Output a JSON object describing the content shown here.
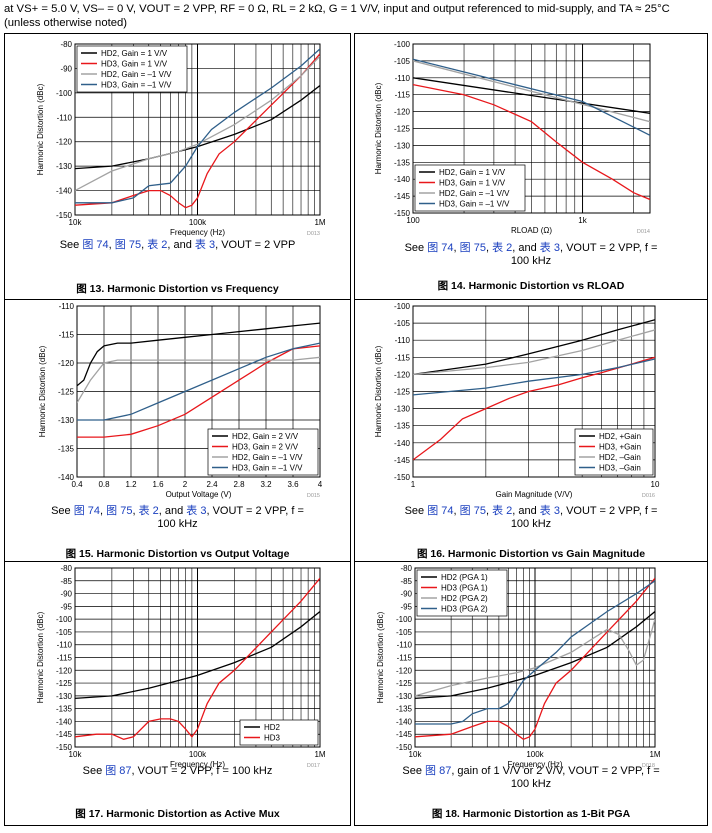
{
  "header": {
    "text": "at VS+ = 5.0 V, VS– = 0 V, VOUT = 2 VPP, RF = 0 Ω, RL = 2 kΩ, G = 1 V/V, input and output referenced to mid-supply, and TA ≈ 25°C (unless otherwise noted)"
  },
  "colors": {
    "black": "#000000",
    "red": "#e8171b",
    "gray": "#a3a3a3",
    "blue": "#2f5f8a",
    "link": "#1a3fbf"
  },
  "figures": [
    {
      "caption": {
        "pre": "See ",
        "links": [
          "图 74",
          "图 75",
          "表 2",
          "表 3"
        ],
        "post": ", VOUT = 2 VPP"
      },
      "title": "图 13. Harmonic Distortion vs Frequency",
      "code": "D013"
    },
    {
      "caption": {
        "pre": "See ",
        "links": [
          "图 74",
          "图 75",
          "表 2",
          "表 3"
        ],
        "post": ", VOUT = 2 VPP, f = 100 kHz"
      },
      "title": "图 14. Harmonic Distortion vs RLOAD",
      "code": "D014"
    },
    {
      "caption": {
        "pre": "See ",
        "links": [
          "图 74",
          "图 75",
          "表 2",
          "表 3"
        ],
        "post": ", VOUT = 2 VPP, f = 100 kHz"
      },
      "title": "图 15. Harmonic Distortion vs Output Voltage",
      "code": "D015"
    },
    {
      "caption": {
        "pre": "See ",
        "links": [
          "图 74",
          "图 75",
          "表 2",
          "表 3"
        ],
        "post": ", VOUT = 2 VPP, f = 100 kHz"
      },
      "title": "图 16. Harmonic Distortion vs Gain Magnitude",
      "code": "D016"
    },
    {
      "caption": {
        "pre": "See ",
        "links": [
          "图 87"
        ],
        "post": ", VOUT = 2 VPP, f = 100 kHz"
      },
      "title": "图 17. Harmonic Distortion as Active Mux",
      "code": "D017"
    },
    {
      "caption": {
        "pre": "See ",
        "links": [
          "图 87"
        ],
        "post": ", gain of 1 V/V or 2 V/V, VOUT = 2 VPP, f = 100 kHz"
      },
      "title": "图 18. Harmonic Distortion as 1-Bit PGA",
      "code": "D018"
    }
  ],
  "chart_data": [
    {
      "type": "line",
      "xscale": "log",
      "xlim": [
        10000,
        1000000
      ],
      "ylim": [
        -150,
        -80
      ],
      "xlabel": "Frequency (Hz)",
      "ylabel": "Harmonic Distortion (dBc)",
      "xticks": [
        10000,
        100000,
        1000000
      ],
      "xticklabels": [
        "10k",
        "100k",
        "1M"
      ],
      "yticks": [
        -80,
        -90,
        -100,
        -110,
        -120,
        -130,
        -140,
        -150
      ],
      "legend_position": "top-left",
      "series": [
        {
          "name": "HD2, Gain = 1 V/V",
          "color": "black",
          "x": [
            10000,
            20000,
            40000,
            70000,
            100000,
            200000,
            400000,
            700000,
            1000000
          ],
          "y": [
            -131,
            -130,
            -127,
            -124,
            -122,
            -117,
            -111,
            -103,
            -97
          ]
        },
        {
          "name": "HD3, Gain = 1 V/V",
          "color": "red",
          "x": [
            10000,
            20000,
            30000,
            40000,
            50000,
            60000,
            70000,
            80000,
            90000,
            100000,
            120000,
            150000,
            200000,
            400000,
            700000,
            1000000
          ],
          "y": [
            -146,
            -145,
            -142,
            -140,
            -140,
            -142,
            -145,
            -147,
            -146,
            -143,
            -133,
            -125,
            -120,
            -105,
            -93,
            -84
          ]
        },
        {
          "name": "HD2, Gain = –1 V/V",
          "color": "gray",
          "x": [
            10000,
            20000,
            40000,
            70000,
            100000,
            200000,
            400000,
            700000,
            1000000
          ],
          "y": [
            -140,
            -132,
            -127,
            -124,
            -121,
            -113,
            -103,
            -93,
            -85
          ]
        },
        {
          "name": "HD3, Gain = –1 V/V",
          "color": "blue",
          "x": [
            10000,
            20000,
            30000,
            40000,
            60000,
            80000,
            100000,
            130000,
            200000,
            400000,
            700000,
            1000000
          ],
          "y": [
            -145,
            -145,
            -143,
            -138,
            -137,
            -130,
            -122,
            -115,
            -108,
            -98,
            -89,
            -82
          ]
        }
      ]
    },
    {
      "type": "line",
      "xscale": "log",
      "xlim": [
        100,
        2500
      ],
      "ylim": [
        -150,
        -100
      ],
      "xlabel": "RLOAD (Ω)",
      "ylabel": "Harmonic Distortion (dBc)",
      "xticks": [
        100,
        1000
      ],
      "xticklabels": [
        "100",
        "1k"
      ],
      "yticks": [
        -100,
        -105,
        -110,
        -115,
        -120,
        -125,
        -130,
        -135,
        -140,
        -145,
        -150
      ],
      "legend_position": "bottom-left",
      "series": [
        {
          "name": "HD2, Gain = 1 V/V",
          "color": "black",
          "x": [
            100,
            2500
          ],
          "y": [
            -110,
            -120.5
          ]
        },
        {
          "name": "HD3, Gain = 1 V/V",
          "color": "red",
          "x": [
            100,
            200,
            300,
            500,
            700,
            1000,
            1500,
            2000,
            2500
          ],
          "y": [
            -112,
            -115,
            -118,
            -123,
            -129,
            -135,
            -140,
            -144,
            -146
          ]
        },
        {
          "name": "HD2, Gain = –1 V/V",
          "color": "gray",
          "x": [
            100,
            2500
          ],
          "y": [
            -105,
            -123
          ]
        },
        {
          "name": "HD3, Gain = –1 V/V",
          "color": "blue",
          "x": [
            100,
            1000,
            2500
          ],
          "y": [
            -104.5,
            -117,
            -127
          ]
        }
      ]
    },
    {
      "type": "line",
      "xscale": "linear",
      "xlim": [
        0.4,
        4
      ],
      "ylim": [
        -140,
        -110
      ],
      "xlabel": "Output Voltage (V)",
      "ylabel": "Harmonic Distortion (dBc)",
      "xticks": [
        0.4,
        0.8,
        1.2,
        1.6,
        2,
        2.4,
        2.8,
        3.2,
        3.6,
        4
      ],
      "xticklabels": [
        "0.4",
        "0.8",
        "1.2",
        "1.6",
        "2",
        "2.4",
        "2.8",
        "3.2",
        "3.6",
        "4"
      ],
      "yticks": [
        -110,
        -115,
        -120,
        -125,
        -130,
        -135,
        -140
      ],
      "legend_position": "bottom-right",
      "series": [
        {
          "name": "HD2, Gain = 2 V/V",
          "color": "black",
          "x": [
            0.4,
            0.5,
            0.6,
            0.7,
            0.8,
            1.0,
            1.2,
            1.6,
            2.0,
            2.4,
            2.8,
            3.2,
            3.6,
            4.0
          ],
          "y": [
            -124,
            -123,
            -120,
            -118,
            -117,
            -116.5,
            -116.5,
            -116,
            -115.5,
            -115,
            -114.5,
            -114,
            -113.5,
            -113
          ]
        },
        {
          "name": "HD3, Gain = 2 V/V",
          "color": "red",
          "x": [
            0.4,
            0.8,
            1.2,
            1.6,
            2.0,
            2.4,
            2.8,
            3.2,
            3.6,
            4.0
          ],
          "y": [
            -133,
            -133,
            -132.5,
            -131,
            -129,
            -126,
            -123,
            -120,
            -117.5,
            -117
          ]
        },
        {
          "name": "HD2, Gain = –1 V/V",
          "color": "gray",
          "x": [
            0.4,
            0.6,
            0.8,
            1.0,
            1.2,
            1.6,
            2.0,
            2.4,
            2.8,
            3.2,
            3.6,
            4.0
          ],
          "y": [
            -127,
            -123,
            -120,
            -119.5,
            -119.5,
            -119.5,
            -119.5,
            -119.5,
            -119.5,
            -119.5,
            -119.5,
            -119
          ]
        },
        {
          "name": "HD3, Gain = –1 V/V",
          "color": "blue",
          "x": [
            0.4,
            0.8,
            1.2,
            1.6,
            2.0,
            2.4,
            2.8,
            3.2,
            3.6,
            4.0
          ],
          "y": [
            -130,
            -130,
            -129,
            -127,
            -125,
            -123,
            -121,
            -119,
            -117.5,
            -116.5
          ]
        }
      ]
    },
    {
      "type": "line",
      "xscale": "log",
      "xlim": [
        1,
        10
      ],
      "ylim": [
        -150,
        -100
      ],
      "xlabel": "Gain Magnitude (V/V)",
      "ylabel": "Harmonic Distortion (dBc)",
      "xticks": [
        1,
        10
      ],
      "xticklabels": [
        "1",
        "10"
      ],
      "yticks": [
        -100,
        -105,
        -110,
        -115,
        -120,
        -125,
        -130,
        -135,
        -140,
        -145,
        -150
      ],
      "legend_position": "bottom-right",
      "series": [
        {
          "name": "HD2, +Gain",
          "color": "black",
          "x": [
            1,
            2,
            3,
            5,
            7,
            10
          ],
          "y": [
            -120,
            -117,
            -114,
            -110,
            -107,
            -104
          ]
        },
        {
          "name": "HD3, +Gain",
          "color": "red",
          "x": [
            1,
            1.3,
            1.6,
            2,
            2.5,
            3,
            4,
            5,
            6,
            8,
            10
          ],
          "y": [
            -145,
            -139,
            -133,
            -130,
            -127,
            -125,
            -123,
            -121,
            -119.5,
            -117,
            -115
          ]
        },
        {
          "name": "HD2, –Gain",
          "color": "gray",
          "x": [
            1,
            2,
            3,
            5,
            7,
            10
          ],
          "y": [
            -120,
            -118,
            -116.5,
            -113,
            -110,
            -107
          ]
        },
        {
          "name": "HD3, –Gain",
          "color": "blue",
          "x": [
            1,
            2,
            3,
            5,
            7,
            10
          ],
          "y": [
            -126,
            -124,
            -122,
            -120,
            -118,
            -115.5
          ]
        }
      ]
    },
    {
      "type": "line",
      "xscale": "log",
      "xlim": [
        10000,
        1000000
      ],
      "ylim": [
        -150,
        -80
      ],
      "xlabel": "Frequency (Hz)",
      "ylabel": "Harmonic Distortion (dBc)",
      "xticks": [
        10000,
        100000,
        1000000
      ],
      "xticklabels": [
        "10k",
        "100k",
        "1M"
      ],
      "yticks": [
        -80,
        -85,
        -90,
        -95,
        -100,
        -105,
        -110,
        -115,
        -120,
        -125,
        -130,
        -135,
        -140,
        -145,
        -150
      ],
      "legend_position": "bottom-right",
      "series": [
        {
          "name": "HD2",
          "color": "black",
          "x": [
            10000,
            20000,
            40000,
            70000,
            100000,
            200000,
            400000,
            700000,
            1000000
          ],
          "y": [
            -131,
            -130,
            -127,
            -124,
            -122,
            -117,
            -111,
            -103,
            -97
          ]
        },
        {
          "name": "HD3",
          "color": "red",
          "x": [
            10000,
            15000,
            20000,
            25000,
            30000,
            40000,
            50000,
            60000,
            70000,
            80000,
            90000,
            100000,
            120000,
            150000,
            200000,
            400000,
            700000,
            1000000
          ],
          "y": [
            -146,
            -145,
            -145,
            -147,
            -146,
            -140,
            -139,
            -139,
            -140,
            -143,
            -146,
            -143,
            -133,
            -125,
            -120,
            -105,
            -93,
            -84
          ]
        }
      ]
    },
    {
      "type": "line",
      "xscale": "log",
      "xlim": [
        10000,
        1000000
      ],
      "ylim": [
        -150,
        -80
      ],
      "xlabel": "Frequency (Hz)",
      "ylabel": "Harmonic Distortion (dBc)",
      "xticks": [
        10000,
        100000,
        1000000
      ],
      "xticklabels": [
        "10k",
        "100k",
        "1M"
      ],
      "yticks": [
        -80,
        -85,
        -90,
        -95,
        -100,
        -105,
        -110,
        -115,
        -120,
        -125,
        -130,
        -135,
        -140,
        -145,
        -150
      ],
      "legend_position": "top-left",
      "series": [
        {
          "name": "HD2 (PGA 1)",
          "color": "black",
          "x": [
            10000,
            20000,
            40000,
            70000,
            100000,
            200000,
            400000,
            700000,
            1000000
          ],
          "y": [
            -131,
            -130,
            -127,
            -124,
            -122,
            -117,
            -111,
            -103,
            -97
          ]
        },
        {
          "name": "HD3 (PGA 1)",
          "color": "red",
          "x": [
            10000,
            20000,
            30000,
            40000,
            50000,
            60000,
            70000,
            80000,
            90000,
            100000,
            120000,
            150000,
            200000,
            400000,
            700000,
            1000000
          ],
          "y": [
            -146,
            -145,
            -142,
            -140,
            -140,
            -142,
            -145,
            -147,
            -146,
            -143,
            -133,
            -125,
            -120,
            -105,
            -93,
            -84
          ]
        },
        {
          "name": "HD2 (PGA 2)",
          "color": "gray",
          "x": [
            10000,
            20000,
            40000,
            70000,
            100000,
            200000,
            400000,
            500000,
            600000,
            700000,
            800000,
            1000000
          ],
          "y": [
            -130,
            -126,
            -123,
            -121,
            -119,
            -113,
            -104,
            -106,
            -112,
            -118,
            -116,
            -100
          ]
        },
        {
          "name": "HD3 (PGA 2)",
          "color": "blue",
          "x": [
            10000,
            15000,
            20000,
            25000,
            30000,
            40000,
            50000,
            60000,
            80000,
            100000,
            150000,
            200000,
            400000,
            700000,
            1000000
          ],
          "y": [
            -141,
            -141,
            -141,
            -140,
            -137,
            -135,
            -135,
            -133,
            -124,
            -120,
            -113,
            -107,
            -97,
            -90,
            -85
          ]
        }
      ]
    }
  ]
}
